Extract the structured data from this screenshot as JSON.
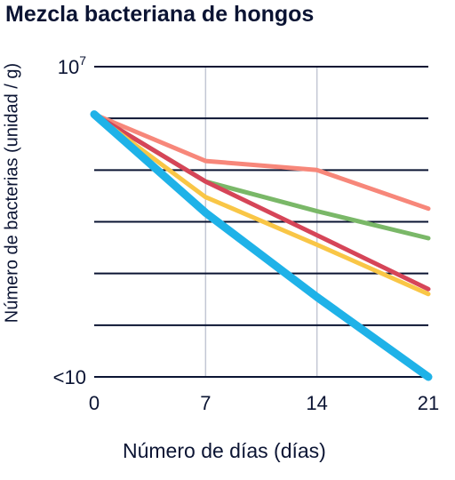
{
  "chart_data": {
    "type": "line",
    "title": "Mezcla bacteriana de hongos",
    "xlabel": "Número de días (días)",
    "ylabel": "Número de bacterias (unidad / g)",
    "x": [
      0,
      7,
      14,
      21
    ],
    "xticks": [
      "0",
      "7",
      "14",
      "21"
    ],
    "xlim": [
      0,
      21
    ],
    "yscale": "log",
    "ylim": [
      10,
      10000000
    ],
    "ytick_labels": [
      {
        "value": 10000000,
        "base": "10",
        "exponent": "7"
      },
      {
        "value": 10,
        "base": "<10",
        "exponent": ""
      }
    ],
    "grid": {
      "horizontal": true,
      "vertical_at": [
        7,
        14
      ]
    },
    "series": [
      {
        "color": "#f7877a",
        "values": [
          1200000,
          150000,
          100000,
          18000
        ]
      },
      {
        "color": "#7ab868",
        "values": [
          1200000,
          60000,
          16000,
          4800
        ]
      },
      {
        "color": "#d64558",
        "values": [
          1200000,
          60000,
          5500,
          500
        ]
      },
      {
        "color": "#f9c646",
        "values": [
          1200000,
          30000,
          3600,
          400
        ]
      },
      {
        "color": "#1fb2e8",
        "values": [
          1200000,
          15000,
          350,
          10
        ]
      }
    ]
  }
}
